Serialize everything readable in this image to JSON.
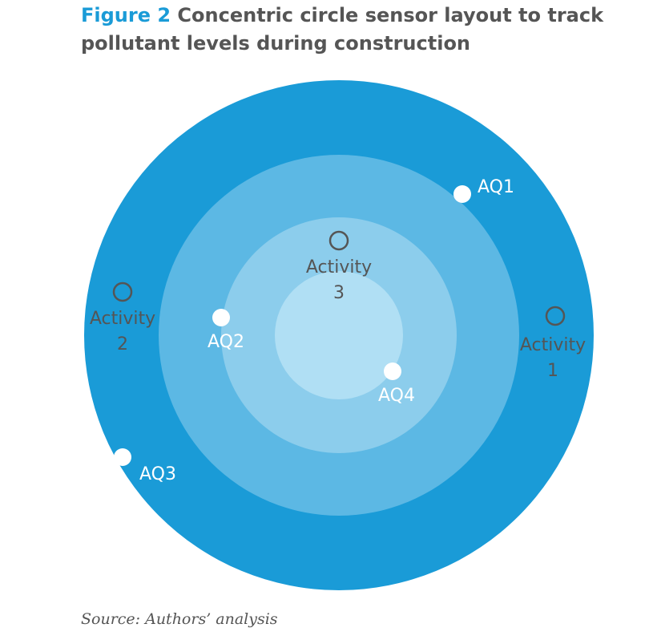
{
  "title": {
    "figure_label": "Figure 2",
    "text": "Concentric circle sensor layout to track pollutant levels during construction"
  },
  "colors": {
    "ring_outer": "#1a9bd7",
    "ring_2": "#5cb8e4",
    "ring_3": "#8ccdec",
    "ring_inner": "#b0dff4",
    "sensor_marker": "#ffffff",
    "activity_marker": "#555555",
    "figure_label": "#1a9bd7",
    "text": "#555555"
  },
  "sensors": [
    {
      "id": "aq1",
      "label": "AQ1"
    },
    {
      "id": "aq2",
      "label": "AQ2"
    },
    {
      "id": "aq3",
      "label": "AQ3"
    },
    {
      "id": "aq4",
      "label": "AQ4"
    }
  ],
  "activities": [
    {
      "id": "activity-1",
      "label_line1": "Activity",
      "label_line2": "1"
    },
    {
      "id": "activity-2",
      "label_line1": "Activity",
      "label_line2": "2"
    },
    {
      "id": "activity-3",
      "label_line1": "Activity",
      "label_line2": "3"
    }
  ],
  "source": "Source: Authors’ analysis"
}
